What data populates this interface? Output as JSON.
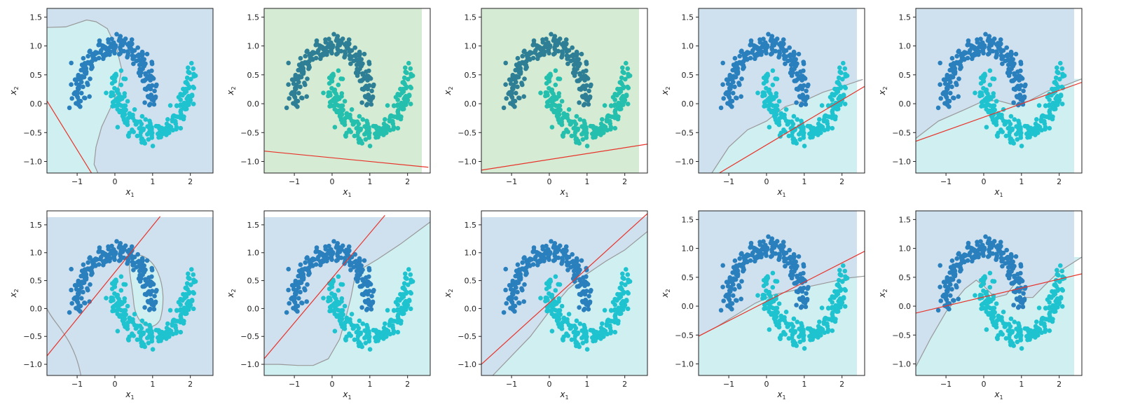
{
  "figure": {
    "colors": {
      "region_upper": "#cfe0ef",
      "region_lower": "#cfeff0",
      "region_green": "#d5ebd3",
      "points_upper": "#2a7fbd",
      "points_lower": "#1fc3d0",
      "points_upper_dim": "#2e7f95",
      "points_lower_dim": "#25bfae",
      "boundary": "#999999",
      "linear_boundary": "#e8332a"
    },
    "axes_text": {
      "xlabel_main": "x",
      "xlabel_sub": "1",
      "ylabel_main": "x",
      "ylabel_sub": "2"
    },
    "tick_labels": {
      "x": [
        "−1",
        "0",
        "1",
        "2"
      ],
      "y_a": [
        "−1.0",
        "−0.5",
        "0.0",
        "0.5",
        "1.0",
        "1.5"
      ],
      "y_b": [
        "−1.0",
        "−0.5",
        "0.0",
        "0.5",
        "1.0",
        "1.5"
      ]
    }
  },
  "chart_data": [
    {
      "type": "scatter",
      "panel": "r0c0",
      "xlim": [
        -1.8,
        2.6
      ],
      "ylim": [
        -1.2,
        1.65
      ],
      "xticks": [
        -1,
        0,
        1,
        2
      ],
      "yticks": [
        -1,
        -0.5,
        0,
        0.5,
        1,
        1.5
      ],
      "region_style": "blue",
      "boundary_curve": [
        [
          -1.8,
          1.32
        ],
        [
          -1.3,
          1.33
        ],
        [
          -0.75,
          1.45
        ],
        [
          -0.5,
          1.42
        ],
        [
          -0.2,
          1.3
        ],
        [
          0.05,
          0.95
        ],
        [
          0.18,
          0.6
        ],
        [
          0.08,
          0.25
        ],
        [
          -0.1,
          -0.05
        ],
        [
          -0.35,
          -0.4
        ],
        [
          -0.5,
          -0.75
        ],
        [
          -0.55,
          -1.05
        ],
        [
          -0.45,
          -1.2
        ]
      ],
      "linear_line": [
        [
          -1.8,
          0.05
        ],
        [
          -0.62,
          -1.2
        ]
      ]
    },
    {
      "type": "scatter",
      "panel": "r0c1",
      "xlim": [
        -1.8,
        2.6
      ],
      "ylim": [
        -1.2,
        1.65
      ],
      "xticks": [
        -1,
        0,
        1,
        2
      ],
      "yticks": [
        -1,
        -0.5,
        0,
        0.5,
        1,
        1.5
      ],
      "region_style": "green",
      "boundary_curve": [],
      "linear_line": [
        [
          -1.8,
          -0.82
        ],
        [
          2.55,
          -1.1
        ]
      ]
    },
    {
      "type": "scatter",
      "panel": "r0c2",
      "xlim": [
        -1.8,
        2.6
      ],
      "ylim": [
        -1.2,
        1.65
      ],
      "xticks": [
        -1,
        0,
        1,
        2
      ],
      "yticks": [
        -1,
        -0.5,
        0,
        0.5,
        1,
        1.5
      ],
      "region_style": "green",
      "boundary_curve": [],
      "linear_line": [
        [
          -1.8,
          -1.15
        ],
        [
          2.6,
          -0.7
        ]
      ]
    },
    {
      "type": "scatter",
      "panel": "r0c3",
      "xlim": [
        -1.8,
        2.6
      ],
      "ylim": [
        -1.2,
        1.65
      ],
      "xticks": [
        -1,
        0,
        1,
        2
      ],
      "yticks": [
        -1,
        -0.5,
        0,
        0.5,
        1,
        1.5
      ],
      "region_style": "blue",
      "boundary_curve": [
        [
          -1.45,
          -1.2
        ],
        [
          -1.0,
          -0.75
        ],
        [
          -0.5,
          -0.45
        ],
        [
          0.0,
          -0.3
        ],
        [
          0.5,
          -0.05
        ],
        [
          1.0,
          0.05
        ],
        [
          1.5,
          0.2
        ],
        [
          2.0,
          0.3
        ],
        [
          2.55,
          0.42
        ]
      ],
      "linear_line": [
        [
          -1.25,
          -1.2
        ],
        [
          2.6,
          0.3
        ]
      ]
    },
    {
      "type": "scatter",
      "panel": "r0c4",
      "xlim": [
        -1.8,
        2.6
      ],
      "ylim": [
        -1.2,
        1.65
      ],
      "xticks": [
        -1,
        0,
        1,
        2
      ],
      "yticks": [
        -1,
        -0.5,
        0,
        0.5,
        1,
        1.5
      ],
      "region_style": "blue",
      "boundary_curve": [
        [
          -1.8,
          -0.6
        ],
        [
          -1.2,
          -0.3
        ],
        [
          -0.5,
          -0.1
        ],
        [
          0.0,
          0.05
        ],
        [
          0.4,
          0.05
        ],
        [
          0.8,
          -0.02
        ],
        [
          1.2,
          0.05
        ],
        [
          1.7,
          0.22
        ],
        [
          2.2,
          0.33
        ],
        [
          2.6,
          0.43
        ]
      ],
      "linear_line": [
        [
          -1.8,
          -0.65
        ],
        [
          2.6,
          0.37
        ]
      ]
    },
    {
      "type": "scatter",
      "panel": "r1c0",
      "xlim": [
        -1.8,
        2.6
      ],
      "ylim": [
        -1.2,
        1.75
      ],
      "xticks": [
        -1,
        0,
        1,
        2
      ],
      "yticks": [
        -1,
        -0.5,
        0,
        0.5,
        1,
        1.5
      ],
      "region_style": "blue-island",
      "boundary_curve": [],
      "linear_line": [
        [
          -1.8,
          -0.85
        ],
        [
          1.2,
          1.65
        ]
      ]
    },
    {
      "type": "scatter",
      "panel": "r1c1",
      "xlim": [
        -1.8,
        2.6
      ],
      "ylim": [
        -1.2,
        1.75
      ],
      "xticks": [
        -1,
        0,
        1,
        2
      ],
      "yticks": [
        -1,
        -0.5,
        0,
        0.5,
        1,
        1.5
      ],
      "region_style": "blue",
      "boundary_curve": [
        [
          -1.8,
          -1.0
        ],
        [
          -1.4,
          -1.0
        ],
        [
          -0.9,
          -1.02
        ],
        [
          -0.5,
          -1.02
        ],
        [
          -0.1,
          -0.9
        ],
        [
          0.2,
          -0.55
        ],
        [
          0.35,
          -0.2
        ],
        [
          0.5,
          0.2
        ],
        [
          0.6,
          0.55
        ],
        [
          0.8,
          0.72
        ],
        [
          1.2,
          0.88
        ],
        [
          1.8,
          1.15
        ],
        [
          2.3,
          1.4
        ],
        [
          2.6,
          1.55
        ]
      ],
      "linear_line": [
        [
          -1.8,
          -0.9
        ],
        [
          1.4,
          1.67
        ]
      ]
    },
    {
      "type": "scatter",
      "panel": "r1c2",
      "xlim": [
        -1.8,
        2.6
      ],
      "ylim": [
        -1.2,
        1.75
      ],
      "xticks": [
        -1,
        0,
        1,
        2
      ],
      "yticks": [
        -1,
        -0.5,
        0,
        0.5,
        1,
        1.5
      ],
      "region_style": "blue",
      "boundary_curve": [
        [
          -1.5,
          -1.2
        ],
        [
          -1.0,
          -0.85
        ],
        [
          -0.5,
          -0.5
        ],
        [
          0.0,
          -0.05
        ],
        [
          0.5,
          0.35
        ],
        [
          1.0,
          0.62
        ],
        [
          1.5,
          0.85
        ],
        [
          2.0,
          1.05
        ],
        [
          2.6,
          1.38
        ]
      ],
      "linear_line": [
        [
          -1.8,
          -1.0
        ],
        [
          2.6,
          1.7
        ]
      ]
    },
    {
      "type": "scatter",
      "panel": "r1c3",
      "xlim": [
        -1.8,
        2.6
      ],
      "ylim": [
        -1.2,
        1.65
      ],
      "xticks": [
        -1,
        0,
        1,
        2
      ],
      "yticks": [
        -1,
        -0.5,
        0,
        0.5,
        1,
        1.5
      ],
      "region_style": "blue",
      "boundary_curve": [
        [
          -1.8,
          -0.52
        ],
        [
          -1.3,
          -0.35
        ],
        [
          -0.8,
          -0.15
        ],
        [
          -0.3,
          0.05
        ],
        [
          0.2,
          0.2
        ],
        [
          0.7,
          0.27
        ],
        [
          1.2,
          0.35
        ],
        [
          1.7,
          0.42
        ],
        [
          2.2,
          0.49
        ],
        [
          2.6,
          0.52
        ]
      ],
      "linear_line": [
        [
          -1.8,
          -0.52
        ],
        [
          2.6,
          0.95
        ]
      ]
    },
    {
      "type": "scatter",
      "panel": "r1c4",
      "xlim": [
        -1.8,
        2.6
      ],
      "ylim": [
        -1.2,
        1.65
      ],
      "xticks": [
        -1,
        0,
        1,
        2
      ],
      "yticks": [
        -1,
        -0.5,
        0,
        0.5,
        1,
        1.5
      ],
      "region_style": "blue",
      "boundary_curve": [
        [
          -1.8,
          -1.05
        ],
        [
          -1.4,
          -0.55
        ],
        [
          -1.0,
          -0.1
        ],
        [
          -0.5,
          0.3
        ],
        [
          -0.2,
          0.45
        ],
        [
          0.0,
          0.35
        ],
        [
          0.3,
          0.15
        ],
        [
          0.6,
          0.2
        ],
        [
          0.9,
          0.45
        ],
        [
          1.1,
          0.15
        ],
        [
          1.3,
          0.15
        ],
        [
          1.6,
          0.35
        ],
        [
          2.0,
          0.6
        ],
        [
          2.6,
          0.85
        ]
      ],
      "linear_line": [
        [
          -1.8,
          -0.12
        ],
        [
          2.6,
          0.56
        ]
      ]
    }
  ]
}
